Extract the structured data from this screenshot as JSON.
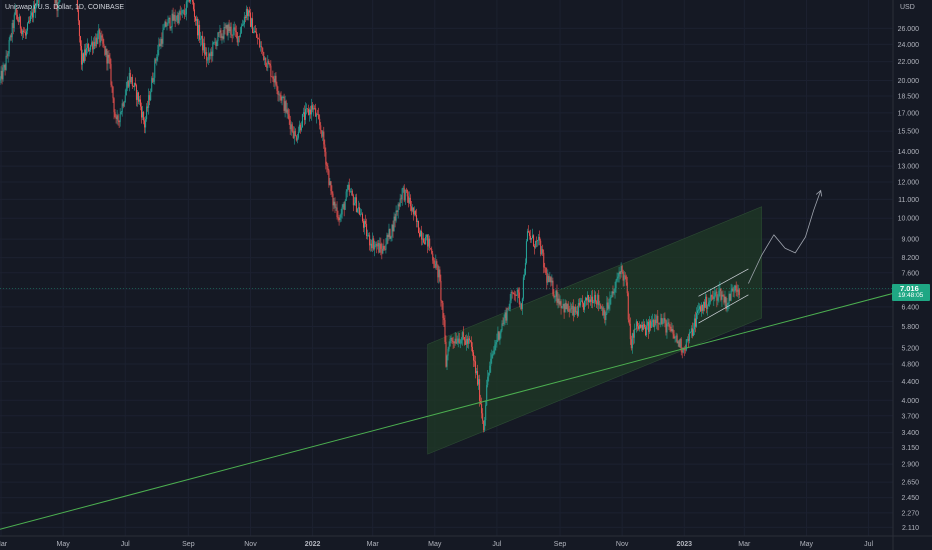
{
  "header": {
    "title": "Uniswap / U.S. Dollar, 1D, COINBASE",
    "unit": "USD"
  },
  "last_price": {
    "value": "7.016",
    "countdown": "19:48:05"
  },
  "colors": {
    "background": "#151924",
    "up_candle": "#26a69a",
    "down_candle": "#ef5350",
    "trendline": "#4caf50",
    "channel_fill": "#1f3a26",
    "price_tag": "#1fa784",
    "axis_text": "#b2b5be"
  },
  "chart_data": {
    "type": "candlestick",
    "title": "Uniswap / U.S. Dollar, 1D, COINBASE",
    "y_scale": "log",
    "y_unit": "USD",
    "ylim": [
      2.02,
      30.0
    ],
    "xlim": [
      "2021-02-28",
      "2023-07-25"
    ],
    "y_ticks": [
      "2.110",
      "2.270",
      "2.450",
      "2.650",
      "2.900",
      "3.150",
      "3.400",
      "3.700",
      "4.000",
      "4.400",
      "4.800",
      "5.200",
      "5.800",
      "6.400",
      "7.000",
      "7.600",
      "8.200",
      "9.000",
      "10.000",
      "11.000",
      "12.000",
      "13.000",
      "14.000",
      "15.500",
      "17.000",
      "18.500",
      "20.000",
      "22.000",
      "24.000",
      "26.000"
    ],
    "x_ticks": [
      {
        "label": "Mar",
        "date": "2021-03-01"
      },
      {
        "label": "May",
        "date": "2021-05-01"
      },
      {
        "label": "Jul",
        "date": "2021-07-01"
      },
      {
        "label": "Sep",
        "date": "2021-09-01"
      },
      {
        "label": "Nov",
        "date": "2021-11-01"
      },
      {
        "label": "2022",
        "date": "2022-01-01"
      },
      {
        "label": "Mar",
        "date": "2022-03-01"
      },
      {
        "label": "May",
        "date": "2022-05-01"
      },
      {
        "label": "Jul",
        "date": "2022-07-01"
      },
      {
        "label": "Sep",
        "date": "2022-09-01"
      },
      {
        "label": "Nov",
        "date": "2022-11-01"
      },
      {
        "label": "2023",
        "date": "2023-01-01"
      },
      {
        "label": "Mar",
        "date": "2023-03-01"
      },
      {
        "label": "May",
        "date": "2023-05-01"
      },
      {
        "label": "Jul",
        "date": "2023-07-01"
      }
    ],
    "price_path": [
      {
        "date": "2021-02-28",
        "close": 20.0
      },
      {
        "date": "2021-03-05",
        "close": 21.5
      },
      {
        "date": "2021-03-15",
        "close": 28.0
      },
      {
        "date": "2021-03-25",
        "close": 25.0
      },
      {
        "date": "2021-04-05",
        "close": 30.0
      },
      {
        "date": "2021-04-15",
        "close": 36.0
      },
      {
        "date": "2021-04-25",
        "close": 29.0
      },
      {
        "date": "2021-05-03",
        "close": 38.0
      },
      {
        "date": "2021-05-12",
        "close": 34.0
      },
      {
        "date": "2021-05-19",
        "close": 22.0
      },
      {
        "date": "2021-05-25",
        "close": 23.5
      },
      {
        "date": "2021-06-05",
        "close": 25.0
      },
      {
        "date": "2021-06-15",
        "close": 22.0
      },
      {
        "date": "2021-06-22",
        "close": 16.0
      },
      {
        "date": "2021-06-26",
        "close": 17.0
      },
      {
        "date": "2021-07-05",
        "close": 20.5
      },
      {
        "date": "2021-07-15",
        "close": 18.0
      },
      {
        "date": "2021-07-20",
        "close": 16.0
      },
      {
        "date": "2021-08-01",
        "close": 23.0
      },
      {
        "date": "2021-08-10",
        "close": 26.5
      },
      {
        "date": "2021-08-20",
        "close": 27.5
      },
      {
        "date": "2021-08-28",
        "close": 28.0
      },
      {
        "date": "2021-09-03",
        "close": 31.0
      },
      {
        "date": "2021-09-10",
        "close": 26.0
      },
      {
        "date": "2021-09-20",
        "close": 22.0
      },
      {
        "date": "2021-09-28",
        "close": 24.5
      },
      {
        "date": "2021-10-10",
        "close": 26.0
      },
      {
        "date": "2021-10-20",
        "close": 25.0
      },
      {
        "date": "2021-10-28",
        "close": 28.5
      },
      {
        "date": "2021-11-05",
        "close": 25.5
      },
      {
        "date": "2021-11-15",
        "close": 22.5
      },
      {
        "date": "2021-11-25",
        "close": 20.0
      },
      {
        "date": "2021-12-05",
        "close": 17.5
      },
      {
        "date": "2021-12-15",
        "close": 15.0
      },
      {
        "date": "2021-12-22",
        "close": 16.5
      },
      {
        "date": "2022-01-01",
        "close": 17.5
      },
      {
        "date": "2022-01-10",
        "close": 15.5
      },
      {
        "date": "2022-01-20",
        "close": 11.0
      },
      {
        "date": "2022-01-28",
        "close": 10.0
      },
      {
        "date": "2022-02-05",
        "close": 11.5
      },
      {
        "date": "2022-02-15",
        "close": 10.5
      },
      {
        "date": "2022-02-25",
        "close": 9.0
      },
      {
        "date": "2022-03-10",
        "close": 8.5
      },
      {
        "date": "2022-03-20",
        "close": 9.5
      },
      {
        "date": "2022-03-30",
        "close": 11.5
      },
      {
        "date": "2022-04-05",
        "close": 11.0
      },
      {
        "date": "2022-04-15",
        "close": 9.5
      },
      {
        "date": "2022-04-25",
        "close": 8.8
      },
      {
        "date": "2022-05-05",
        "close": 7.5
      },
      {
        "date": "2022-05-10",
        "close": 5.8
      },
      {
        "date": "2022-05-12",
        "close": 4.8
      },
      {
        "date": "2022-05-15",
        "close": 5.4
      },
      {
        "date": "2022-05-25",
        "close": 5.5
      },
      {
        "date": "2022-06-05",
        "close": 5.3
      },
      {
        "date": "2022-06-13",
        "close": 4.3
      },
      {
        "date": "2022-06-18",
        "close": 3.5
      },
      {
        "date": "2022-06-22",
        "close": 4.5
      },
      {
        "date": "2022-06-30",
        "close": 5.4
      },
      {
        "date": "2022-07-08",
        "close": 6.0
      },
      {
        "date": "2022-07-18",
        "close": 7.0
      },
      {
        "date": "2022-07-25",
        "close": 6.5
      },
      {
        "date": "2022-07-31",
        "close": 9.2
      },
      {
        "date": "2022-08-08",
        "close": 8.8
      },
      {
        "date": "2022-08-12",
        "close": 8.8
      },
      {
        "date": "2022-08-18",
        "close": 7.5
      },
      {
        "date": "2022-08-28",
        "close": 6.8
      },
      {
        "date": "2022-09-05",
        "close": 6.4
      },
      {
        "date": "2022-09-15",
        "close": 6.2
      },
      {
        "date": "2022-09-25",
        "close": 6.5
      },
      {
        "date": "2022-10-05",
        "close": 6.8
      },
      {
        "date": "2022-10-15",
        "close": 6.2
      },
      {
        "date": "2022-10-25",
        "close": 7.0
      },
      {
        "date": "2022-10-30",
        "close": 7.8
      },
      {
        "date": "2022-11-05",
        "close": 7.2
      },
      {
        "date": "2022-11-09",
        "close": 5.3
      },
      {
        "date": "2022-11-15",
        "close": 5.8
      },
      {
        "date": "2022-11-25",
        "close": 5.7
      },
      {
        "date": "2022-12-05",
        "close": 6.1
      },
      {
        "date": "2022-12-15",
        "close": 5.8
      },
      {
        "date": "2022-12-25",
        "close": 5.4
      },
      {
        "date": "2022-12-31",
        "close": 5.2
      },
      {
        "date": "2023-01-08",
        "close": 5.6
      },
      {
        "date": "2023-01-15",
        "close": 6.3
      },
      {
        "date": "2023-01-25",
        "close": 6.6
      },
      {
        "date": "2023-02-05",
        "close": 6.9
      },
      {
        "date": "2023-02-12",
        "close": 6.5
      },
      {
        "date": "2023-02-20",
        "close": 7.2
      },
      {
        "date": "2023-02-24",
        "close": 7.0
      }
    ],
    "drawings": {
      "support_line": [
        {
          "date": "2021-02-28",
          "price": 2.09
        },
        {
          "date": "2023-07-25",
          "price": 6.85
        }
      ],
      "channel": {
        "lower_start": {
          "date": "2022-04-24",
          "price": 3.05
        },
        "lower_end": {
          "date": "2023-03-18",
          "price": 6.05
        },
        "upper_start": {
          "date": "2022-04-24",
          "price": 5.3
        },
        "upper_end": {
          "date": "2023-03-18",
          "price": 10.6
        }
      },
      "wedge": {
        "upper": [
          {
            "date": "2023-01-15",
            "price": 6.75
          },
          {
            "date": "2023-03-05",
            "price": 7.75
          }
        ],
        "lower": [
          {
            "date": "2023-01-15",
            "price": 5.9
          },
          {
            "date": "2023-03-05",
            "price": 6.8
          }
        ]
      },
      "projection_path": [
        {
          "date": "2023-03-05",
          "price": 7.2
        },
        {
          "date": "2023-03-18",
          "price": 8.3
        },
        {
          "date": "2023-03-30",
          "price": 9.2
        },
        {
          "date": "2023-04-10",
          "price": 8.6
        },
        {
          "date": "2023-04-20",
          "price": 8.4
        },
        {
          "date": "2023-04-30",
          "price": 9.1
        },
        {
          "date": "2023-05-08",
          "price": 10.4
        },
        {
          "date": "2023-05-15",
          "price": 11.5
        }
      ]
    }
  }
}
